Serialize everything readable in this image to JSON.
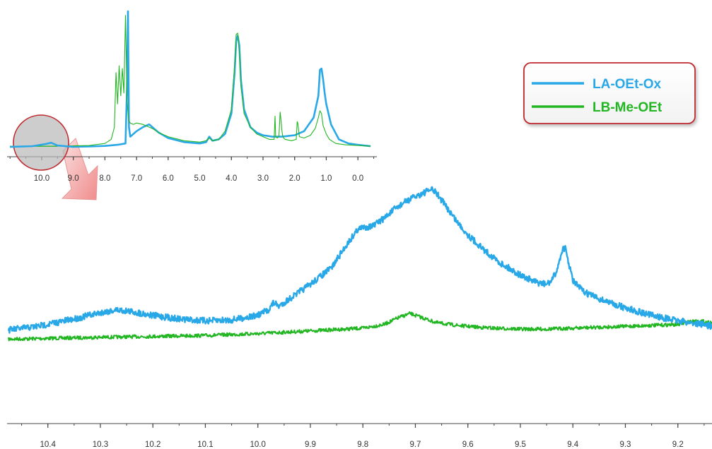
{
  "colors": {
    "series_a": "#29A8E8",
    "series_b": "#22B622",
    "legend_border": "#C0282E",
    "zoom_circle": "#C0282E",
    "zoom_fill": "#C8C8C8",
    "arrow": "#F4A5A5"
  },
  "legend": {
    "series_a": "LA-OEt-Ox",
    "series_b": "LB-Me-OEt",
    "placement": "top-right"
  },
  "chart_data": [
    {
      "type": "line",
      "panel": "inset-overview",
      "x_reversed": true,
      "xlim": [
        -0.6,
        11.05
      ],
      "ylim": [
        0,
        100
      ],
      "x_ticks": [
        10.0,
        9.0,
        8.0,
        7.0,
        6.0,
        5.0,
        4.0,
        3.0,
        2.0,
        1.0,
        0.0
      ],
      "x_tick_labels": [
        "10.0",
        "9.0",
        "8.0",
        "7.0",
        "6.0",
        "5.0",
        "4.0",
        "3.0",
        "2.0",
        "1.0",
        "0.0"
      ],
      "grid": false,
      "series": [
        {
          "name": "LA-OEt-Ox",
          "x": [
            11.0,
            10.3,
            9.9,
            9.7,
            9.5,
            9.0,
            8.5,
            8.0,
            7.6,
            7.35,
            7.3,
            7.27,
            7.24,
            7.2,
            7.0,
            6.8,
            6.6,
            6.5,
            6.3,
            6.0,
            5.5,
            5.0,
            4.8,
            4.7,
            4.6,
            4.4,
            4.2,
            4.0,
            3.9,
            3.85,
            3.8,
            3.75,
            3.7,
            3.6,
            3.4,
            3.2,
            3.0,
            2.7,
            2.4,
            2.0,
            1.7,
            1.4,
            1.25,
            1.2,
            1.15,
            1.1,
            1.05,
            1.0,
            0.85,
            0.6,
            0.3,
            0.0,
            -0.4
          ],
          "y": [
            0.5,
            1.0,
            2.5,
            3.5,
            1.5,
            0.5,
            0.8,
            1.2,
            2.0,
            3.0,
            45.0,
            100.0,
            15.0,
            8.0,
            12.0,
            15.0,
            17.0,
            15.0,
            11.0,
            7.0,
            4.0,
            3.0,
            4.0,
            8.0,
            5.0,
            6.0,
            10.0,
            25.0,
            55.0,
            78.0,
            82.0,
            75.0,
            50.0,
            28.0,
            15.0,
            11.0,
            9.0,
            8.0,
            8.0,
            9.0,
            12.0,
            22.0,
            38.0,
            57.0,
            58.0,
            50.0,
            40.0,
            32.0,
            17.0,
            6.0,
            3.0,
            2.0,
            1.0
          ]
        },
        {
          "name": "LB-Me-OEt",
          "x": [
            11.0,
            9.5,
            8.5,
            8.0,
            7.8,
            7.7,
            7.65,
            7.6,
            7.55,
            7.5,
            7.45,
            7.4,
            7.35,
            7.3,
            7.25,
            7.2,
            7.1,
            7.0,
            6.8,
            6.6,
            6.5,
            6.3,
            6.0,
            5.5,
            5.0,
            4.8,
            4.7,
            4.6,
            4.4,
            4.2,
            4.0,
            3.9,
            3.85,
            3.8,
            3.75,
            3.7,
            3.6,
            3.4,
            3.2,
            3.0,
            2.8,
            2.65,
            2.62,
            2.6,
            2.55,
            2.5,
            2.48,
            2.46,
            2.43,
            2.4,
            2.38,
            2.35,
            2.3,
            2.1,
            1.95,
            1.92,
            1.9,
            1.85,
            1.7,
            1.5,
            1.35,
            1.25,
            1.2,
            1.15,
            1.1,
            1.0,
            0.9,
            0.7,
            0.4,
            0.0,
            -0.4
          ],
          "y": [
            1.0,
            1.0,
            1.5,
            3.0,
            6.0,
            15.0,
            55.0,
            32.0,
            60.0,
            38.0,
            58.0,
            40.0,
            97.0,
            35.0,
            20.0,
            18.0,
            17.0,
            18.0,
            17.0,
            15.0,
            14.0,
            11.0,
            8.0,
            5.0,
            4.0,
            5.0,
            7.0,
            5.0,
            6.0,
            12.0,
            28.0,
            60.0,
            83.0,
            84.0,
            70.0,
            45.0,
            25.0,
            15.0,
            10.0,
            8.0,
            6.0,
            6.0,
            23.0,
            8.0,
            7.0,
            8.0,
            16.0,
            26.0,
            20.0,
            12.0,
            9.0,
            7.0,
            6.0,
            5.0,
            6.0,
            19.0,
            18.0,
            8.0,
            7.0,
            9.0,
            14.0,
            22.0,
            27.0,
            25.0,
            16.0,
            10.0,
            6.0,
            3.0,
            2.0,
            1.5,
            1.0
          ]
        }
      ]
    },
    {
      "type": "line",
      "panel": "main-zoom",
      "x_reversed": true,
      "xlim": [
        9.135,
        10.475
      ],
      "ylim": [
        0,
        100
      ],
      "x_ticks": [
        10.4,
        10.3,
        10.2,
        10.1,
        10.0,
        9.9,
        9.8,
        9.7,
        9.6,
        9.5,
        9.4,
        9.3,
        9.2
      ],
      "x_tick_labels": [
        "10.4",
        "10.3",
        "10.2",
        "10.1",
        "10.0",
        "9.9",
        "9.8",
        "9.7",
        "9.6",
        "9.5",
        "9.4",
        "9.3",
        "9.2"
      ],
      "grid": false,
      "series": [
        {
          "name": "LA-OEt-Ox",
          "x": [
            10.475,
            10.42,
            10.35,
            10.3,
            10.27,
            10.25,
            10.2,
            10.15,
            10.1,
            10.05,
            10.0,
            9.98,
            9.97,
            9.96,
            9.93,
            9.9,
            9.86,
            9.83,
            9.81,
            9.8,
            9.78,
            9.76,
            9.74,
            9.72,
            9.7,
            9.68,
            9.67,
            9.66,
            9.64,
            9.62,
            9.6,
            9.57,
            9.54,
            9.5,
            9.47,
            9.45,
            9.44,
            9.43,
            9.42,
            9.415,
            9.41,
            9.4,
            9.38,
            9.35,
            9.3,
            9.25,
            9.2,
            9.15,
            9.135
          ],
          "y": [
            23.0,
            25.0,
            29.0,
            32.5,
            34.0,
            33.5,
            31.0,
            29.0,
            28.0,
            28.5,
            31.0,
            34.0,
            38.0,
            36.0,
            42.0,
            48.0,
            57.0,
            70.0,
            78.0,
            79.0,
            80.0,
            84.0,
            89.0,
            93.0,
            96.0,
            98.5,
            100.0,
            98.0,
            90.0,
            82.0,
            75.0,
            67.0,
            60.0,
            53.0,
            49.0,
            48.0,
            50.0,
            56.0,
            67.0,
            68.0,
            62.0,
            50.0,
            44.0,
            40.0,
            35.0,
            31.0,
            28.0,
            26.0,
            25.0
          ]
        },
        {
          "name": "LB-Me-OEt",
          "x": [
            10.475,
            10.3,
            10.1,
            10.0,
            9.9,
            9.8,
            9.76,
            9.73,
            9.71,
            9.69,
            9.66,
            9.62,
            9.58,
            9.55,
            9.5,
            9.45,
            9.4,
            9.35,
            9.3,
            9.25,
            9.2,
            9.18,
            9.16,
            9.135
          ],
          "y": [
            18.0,
            19.0,
            20.0,
            21.0,
            22.5,
            24.0,
            26.0,
            30.0,
            32.0,
            30.0,
            27.0,
            25.5,
            24.5,
            24.0,
            23.5,
            23.5,
            24.0,
            24.5,
            25.0,
            25.5,
            26.0,
            27.5,
            28.0,
            27.0
          ]
        }
      ]
    }
  ]
}
